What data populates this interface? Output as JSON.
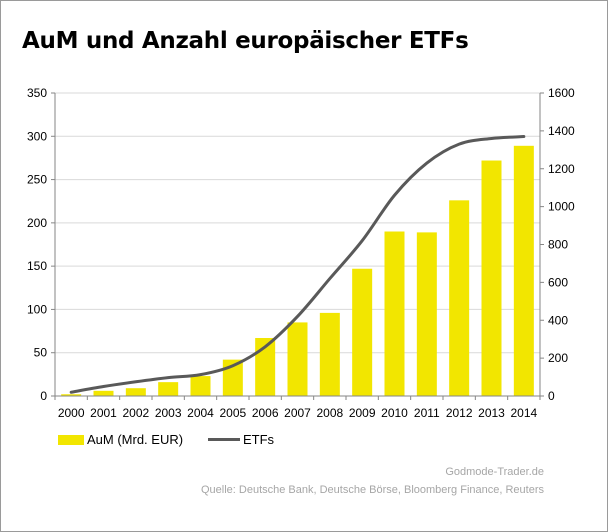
{
  "title": "AuM und Anzahl europäischer ETFs",
  "colors": {
    "bar": "#f2e600",
    "line": "#595959",
    "grid": "#d9d9d9",
    "axis": "#868686"
  },
  "legend": {
    "bar_label": "AuM (Mrd. EUR)",
    "line_label": "ETFs"
  },
  "source": {
    "brand": "Godmode-Trader.de",
    "credit": "Quelle: Deutsche Bank, Deutsche Börse, Bloomberg Finance, Reuters"
  },
  "chart_data": {
    "type": "bar",
    "categories": [
      "2000",
      "2001",
      "2002",
      "2003",
      "2004",
      "2005",
      "2006",
      "2007",
      "2008",
      "2009",
      "2010",
      "2011",
      "2012",
      "2013",
      "2014"
    ],
    "series": [
      {
        "name": "AuM (Mrd. EUR)",
        "type": "bar",
        "axis": "left",
        "values": [
          2,
          6,
          9,
          16,
          23,
          42,
          67,
          85,
          96,
          147,
          190,
          189,
          226,
          272,
          289
        ]
      },
      {
        "name": "ETFs",
        "type": "line",
        "axis": "right",
        "values": [
          20,
          50,
          75,
          97,
          113,
          160,
          260,
          420,
          620,
          820,
          1060,
          1230,
          1330,
          1360,
          1370
        ]
      }
    ],
    "ylim_left": [
      0,
      350
    ],
    "yticks_left": [
      "0",
      "50",
      "100",
      "150",
      "200",
      "250",
      "300",
      "350"
    ],
    "ylim_right": [
      0,
      1600
    ],
    "yticks_right": [
      "0",
      "200",
      "400",
      "600",
      "800",
      "1000",
      "1200",
      "1400",
      "1600"
    ],
    "grid": true,
    "legend_position": "bottom-left"
  }
}
